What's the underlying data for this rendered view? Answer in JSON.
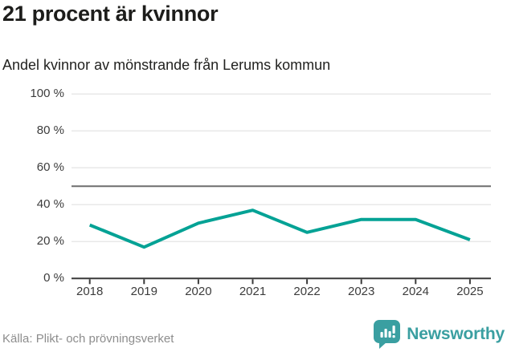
{
  "title": "21 procent är kvinnor",
  "subtitle": "Andel kvinnor av mönstrande från Lerums kommun",
  "source": "Källa: Plikt- och prövningsverket",
  "branding": {
    "name": "Newsworthy",
    "logo_icon": "speech-bubble-bar-chart-exclamation",
    "color": "#3a9fa1"
  },
  "colors": {
    "line": "#04a295",
    "grid": "#e8e8e8",
    "reference_line": "#6e6e6e",
    "axis": "#3a3a3a",
    "tick_label": "#3c3c3c",
    "title_text": "#1d1d1b",
    "muted_text": "#8d8d8d"
  },
  "chart_data": {
    "type": "line",
    "title": "21 procent är kvinnor",
    "subtitle": "Andel kvinnor av mönstrande från Lerums kommun",
    "series_name": "Andel kvinnor av mönstrande",
    "categories": [
      "2018",
      "2019",
      "2020",
      "2021",
      "2022",
      "2023",
      "2024",
      "2025"
    ],
    "values": [
      29,
      17,
      30,
      37,
      25,
      32,
      32,
      21
    ],
    "unit": "%",
    "ylim": [
      0,
      100
    ],
    "yticks": [
      0,
      20,
      40,
      60,
      80,
      100
    ],
    "ytick_suffix": " %",
    "reference_line": 50,
    "grid": "horizontal",
    "legend": "none",
    "line_color": "#04a295"
  }
}
